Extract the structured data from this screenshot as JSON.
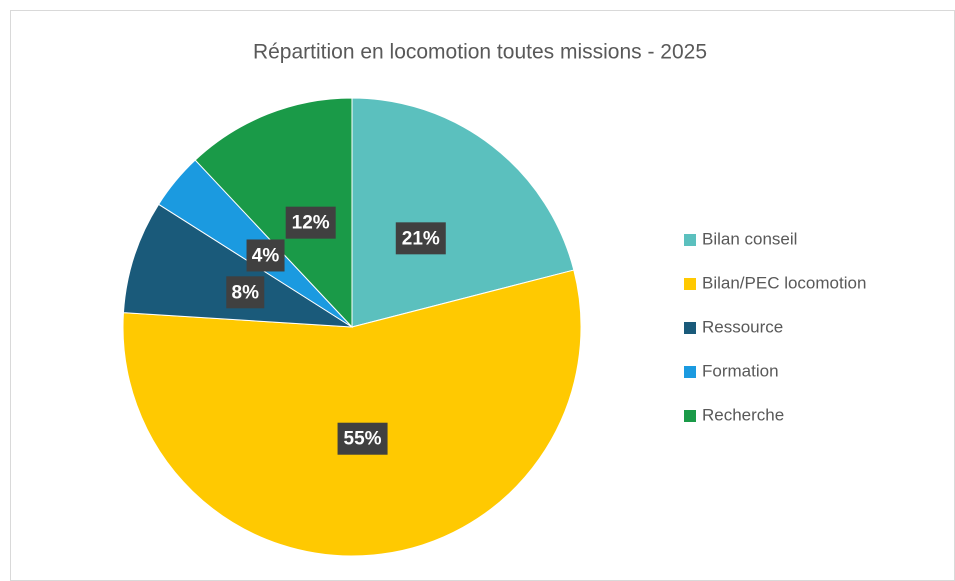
{
  "chart_data": {
    "type": "pie",
    "title": "Répartition en locomotion toutes missions - 2025",
    "categories": [
      "Bilan conseil",
      "Bilan/PEC locomotion",
      "Ressource",
      "Formation",
      "Recherche"
    ],
    "values": [
      21,
      55,
      8,
      4,
      12
    ],
    "value_labels": [
      "21%",
      "55%",
      "8%",
      "4%",
      "12%"
    ],
    "colors": [
      "#5bc0be",
      "#ffc901",
      "#1a5a7a",
      "#1b9ae0",
      "#1a9a48"
    ],
    "legend": "right"
  }
}
